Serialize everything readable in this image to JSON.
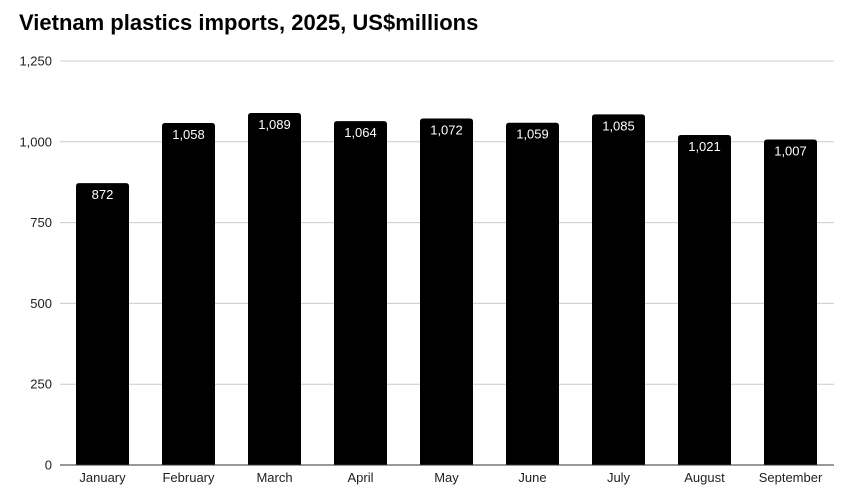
{
  "colors": {
    "bar": "#000000",
    "grid": "#cccccc",
    "axis": "#333333",
    "data_label": "#ffffff",
    "tick_text": "#222222",
    "background": "#ffffff"
  },
  "chart_data": {
    "type": "bar",
    "title": "Vietnam plastics imports, 2025, US$millions",
    "xlabel": "",
    "ylabel": "",
    "categories": [
      "January",
      "February",
      "March",
      "April",
      "May",
      "June",
      "July",
      "August",
      "September"
    ],
    "values": [
      872,
      1058,
      1089,
      1064,
      1072,
      1059,
      1085,
      1021,
      1007
    ],
    "data_labels": [
      "872",
      "1,058",
      "1,089",
      "1,064",
      "1,072",
      "1,059",
      "1,085",
      "1,021",
      "1,007"
    ],
    "ylim": [
      0,
      1250
    ],
    "yticks": [
      0,
      250,
      500,
      750,
      1000,
      1250
    ],
    "ytick_labels": [
      "0",
      "250",
      "500",
      "750",
      "1,000",
      "1,250"
    ],
    "grid": true,
    "legend": "none"
  }
}
